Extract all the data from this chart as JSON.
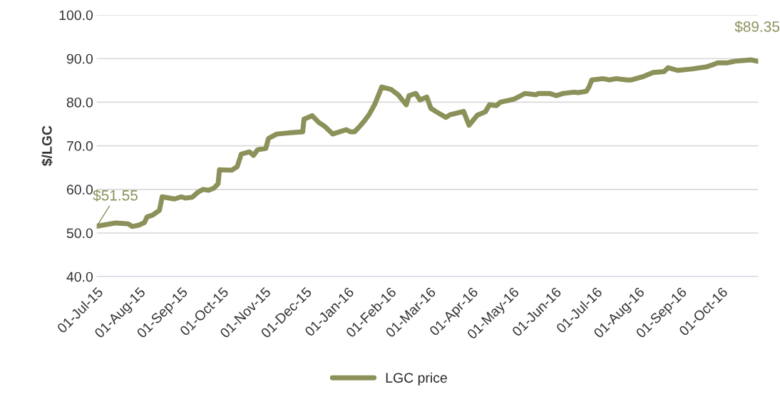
{
  "chart_data": {
    "type": "line",
    "ylabel": "$/LGC",
    "x": [
      "2015-07-01",
      "2015-07-15",
      "2015-07-24",
      "2015-07-27",
      "2015-08-01",
      "2015-08-05",
      "2015-08-07",
      "2015-08-11",
      "2015-08-16",
      "2015-08-18",
      "2015-08-27",
      "2015-09-01",
      "2015-09-04",
      "2015-09-09",
      "2015-09-13",
      "2015-09-17",
      "2015-09-21",
      "2015-09-25",
      "2015-09-28",
      "2015-09-29",
      "2015-10-08",
      "2015-10-12",
      "2015-10-15",
      "2015-10-21",
      "2015-10-24",
      "2015-10-27",
      "2015-11-02",
      "2015-11-04",
      "2015-11-10",
      "2015-11-17",
      "2015-11-20",
      "2015-11-29",
      "2015-11-30",
      "2015-12-06",
      "2015-12-11",
      "2015-12-15",
      "2015-12-21",
      "2015-12-31",
      "2016-01-03",
      "2016-01-06",
      "2016-01-10",
      "2016-01-13",
      "2016-01-17",
      "2016-01-21",
      "2016-01-26",
      "2016-02-02",
      "2016-02-07",
      "2016-02-13",
      "2016-02-15",
      "2016-02-20",
      "2016-02-23",
      "2016-02-28",
      "2016-03-02",
      "2016-03-06",
      "2016-03-13",
      "2016-03-16",
      "2016-03-26",
      "2016-03-30",
      "2016-04-05",
      "2016-04-11",
      "2016-04-14",
      "2016-04-19",
      "2016-04-22",
      "2016-04-28",
      "2016-05-02",
      "2016-05-07",
      "2016-05-10",
      "2016-05-18",
      "2016-05-20",
      "2016-05-28",
      "2016-06-02",
      "2016-06-07",
      "2016-06-15",
      "2016-06-18",
      "2016-06-24",
      "2016-06-26",
      "2016-06-28",
      "2016-07-06",
      "2016-07-11",
      "2016-07-16",
      "2016-07-24",
      "2016-07-27",
      "2016-08-04",
      "2016-08-12",
      "2016-08-20",
      "2016-08-23",
      "2016-08-30",
      "2016-09-09",
      "2016-09-20",
      "2016-09-25",
      "2016-09-28",
      "2016-10-05",
      "2016-10-11",
      "2016-10-23",
      "2016-10-28"
    ],
    "series": [
      {
        "name": "LGC price",
        "color": "#8c915a",
        "values": [
          51.55,
          52.3,
          52.1,
          51.5,
          51.8,
          52.4,
          53.7,
          54.1,
          55.2,
          58.3,
          57.8,
          58.3,
          58.0,
          58.2,
          59.3,
          60.0,
          59.8,
          60.3,
          61.3,
          64.5,
          64.4,
          65.2,
          68.1,
          68.6,
          67.8,
          69.1,
          69.4,
          71.7,
          72.7,
          72.9,
          73.0,
          73.2,
          76.1,
          76.9,
          75.3,
          74.5,
          72.7,
          73.7,
          73.2,
          73.2,
          74.5,
          75.6,
          77.3,
          79.6,
          83.5,
          82.9,
          81.7,
          79.4,
          81.5,
          82.0,
          80.5,
          81.2,
          78.6,
          77.8,
          76.5,
          77.1,
          77.9,
          74.7,
          77.0,
          77.8,
          79.4,
          79.2,
          80.0,
          80.4,
          80.7,
          81.5,
          82.0,
          81.7,
          82.0,
          82.0,
          81.5,
          82.0,
          82.3,
          82.2,
          82.5,
          83.5,
          85.1,
          85.4,
          85.1,
          85.4,
          85.1,
          85.1,
          85.8,
          86.8,
          87.0,
          87.9,
          87.3,
          87.6,
          88.1,
          88.6,
          89.0,
          89.0,
          89.4,
          89.7,
          89.35
        ]
      }
    ],
    "xlim": [
      "2015-07-01",
      "2016-10-28"
    ],
    "xticks": [
      {
        "value": "2015-07-01",
        "label": "01-Jul-15"
      },
      {
        "value": "2015-08-01",
        "label": "01-Aug-15"
      },
      {
        "value": "2015-09-01",
        "label": "01-Sep-15"
      },
      {
        "value": "2015-10-01",
        "label": "01-Oct-15"
      },
      {
        "value": "2015-11-01",
        "label": "01-Nov-15"
      },
      {
        "value": "2015-12-01",
        "label": "01-Dec-15"
      },
      {
        "value": "2016-01-01",
        "label": "01-Jan-16"
      },
      {
        "value": "2016-02-01",
        "label": "01-Feb-16"
      },
      {
        "value": "2016-03-01",
        "label": "01-Mar-16"
      },
      {
        "value": "2016-04-01",
        "label": "01-Apr-16"
      },
      {
        "value": "2016-05-01",
        "label": "01-May-16"
      },
      {
        "value": "2016-06-01",
        "label": "01-Jun-16"
      },
      {
        "value": "2016-07-01",
        "label": "01-Jul-16"
      },
      {
        "value": "2016-08-01",
        "label": "01-Aug-16"
      },
      {
        "value": "2016-09-01",
        "label": "01-Sep-16"
      },
      {
        "value": "2016-10-01",
        "label": "01-Oct-16"
      }
    ],
    "ylim": [
      40,
      100
    ],
    "yticks": [
      {
        "value": 40,
        "label": "40.0"
      },
      {
        "value": 50,
        "label": "50.0"
      },
      {
        "value": 60,
        "label": "60.0"
      },
      {
        "value": 70,
        "label": "70.0"
      },
      {
        "value": 80,
        "label": "80.0"
      },
      {
        "value": 90,
        "label": "90.0"
      },
      {
        "value": 100,
        "label": "100.0"
      }
    ],
    "annotations": [
      {
        "text": "$51.55",
        "x": "2015-07-01",
        "y": 51.55
      },
      {
        "text": "$89.35",
        "x": "2016-10-28",
        "y": 89.35
      }
    ],
    "grid": "y",
    "legend": "bottom",
    "marker": "none",
    "line_style": "solid"
  }
}
